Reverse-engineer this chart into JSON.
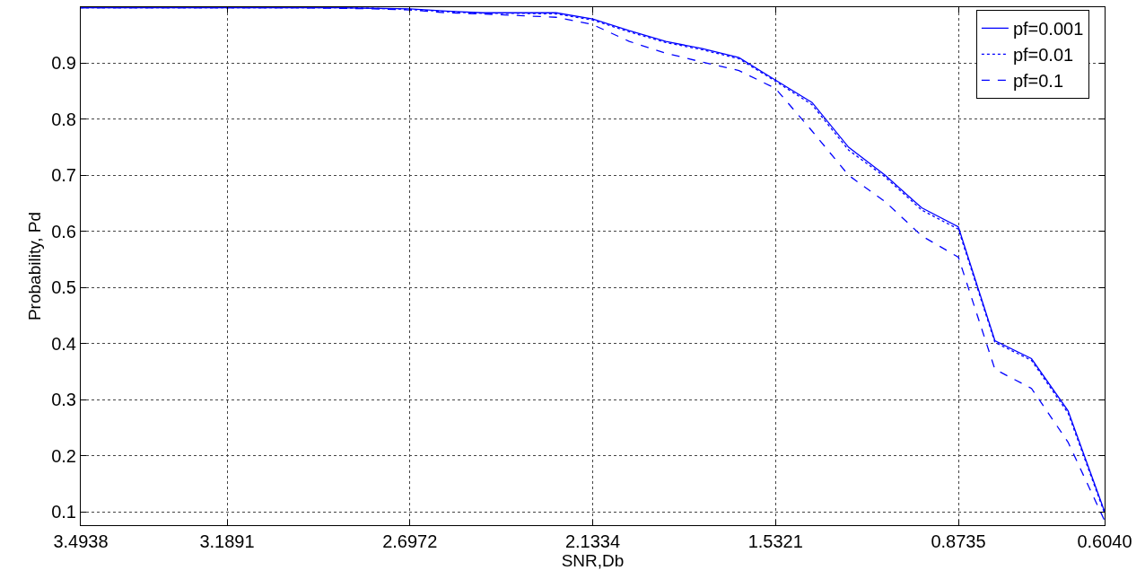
{
  "chart_data": {
    "type": "line",
    "xlabel": "SNR,Db",
    "ylabel": "Probability, Pd",
    "categories": [
      "3.4938",
      null,
      null,
      null,
      "3.1891",
      null,
      null,
      null,
      null,
      "2.6972",
      null,
      null,
      null,
      null,
      "2.1334",
      null,
      null,
      null,
      null,
      "1.5321",
      null,
      null,
      null,
      null,
      "0.8735",
      null,
      null,
      null,
      "0.6040"
    ],
    "series": [
      {
        "name": "pf=0.001",
        "color": "#0000ff",
        "line_style": "solid",
        "values": [
          0.999,
          0.999,
          0.999,
          0.999,
          0.999,
          0.999,
          0.999,
          0.999,
          0.998,
          0.997,
          0.993,
          0.99,
          0.99,
          0.99,
          0.979,
          0.958,
          0.939,
          0.926,
          0.91,
          0.87,
          0.83,
          0.75,
          0.7,
          0.642,
          0.608,
          0.405,
          0.373,
          0.28,
          0.1
        ]
      },
      {
        "name": "pf=0.01",
        "color": "#0000ff",
        "line_style": "dotted",
        "values": [
          0.999,
          0.999,
          0.999,
          0.999,
          0.999,
          0.999,
          0.999,
          0.999,
          0.998,
          0.996,
          0.992,
          0.989,
          0.989,
          0.988,
          0.977,
          0.956,
          0.937,
          0.924,
          0.908,
          0.868,
          0.826,
          0.745,
          0.697,
          0.638,
          0.604,
          0.402,
          0.37,
          0.276,
          0.097
        ]
      },
      {
        "name": "pf=0.1",
        "color": "#0000ff",
        "line_style": "dashed",
        "values": [
          0.999,
          0.999,
          0.999,
          0.999,
          0.999,
          0.999,
          0.999,
          0.998,
          0.997,
          0.995,
          0.99,
          0.988,
          0.985,
          0.982,
          0.969,
          0.939,
          0.918,
          0.902,
          0.887,
          0.855,
          0.779,
          0.7,
          0.653,
          0.592,
          0.554,
          0.354,
          0.32,
          0.224,
          0.084
        ]
      }
    ],
    "ylim": [
      0.076,
      1.0
    ],
    "yticks": [
      0.1,
      0.2,
      0.3,
      0.4,
      0.5,
      0.6,
      0.7,
      0.8,
      0.9
    ],
    "grid": true,
    "legend": "top right"
  }
}
